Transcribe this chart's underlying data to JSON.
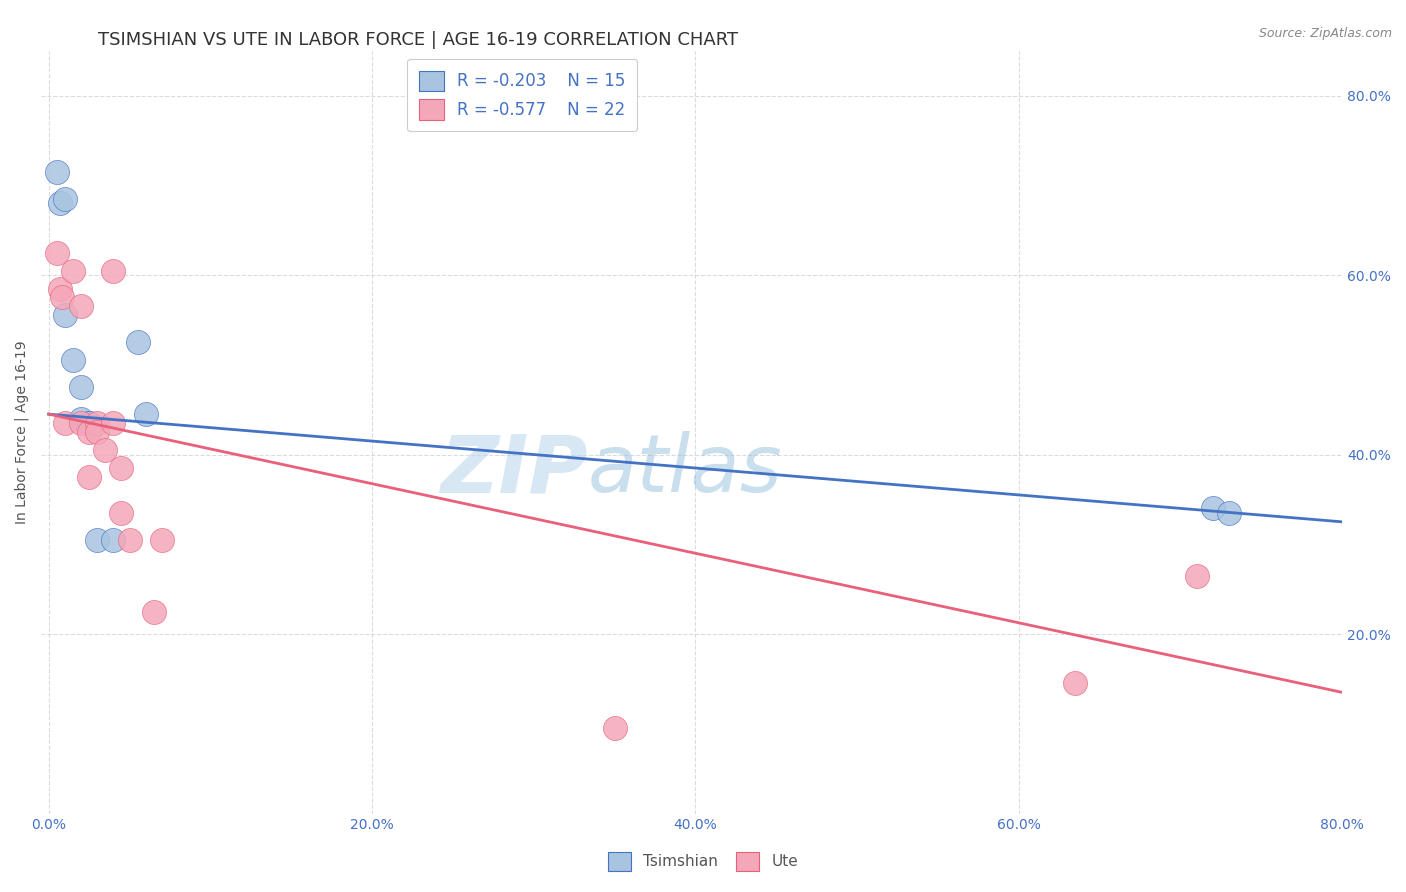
{
  "title": "TSIMSHIAN VS UTE IN LABOR FORCE | AGE 16-19 CORRELATION CHART",
  "source": "Source: ZipAtlas.com",
  "xlabel": "",
  "ylabel": "In Labor Force | Age 16-19",
  "xlim": [
    -0.005,
    0.8
  ],
  "ylim": [
    0.0,
    0.85
  ],
  "xtick_labels": [
    "0.0%",
    "20.0%",
    "40.0%",
    "60.0%",
    "80.0%"
  ],
  "xtick_vals": [
    0.0,
    0.2,
    0.4,
    0.6,
    0.8
  ],
  "ytick_labels": [
    "20.0%",
    "40.0%",
    "60.0%",
    "80.0%"
  ],
  "ytick_vals": [
    0.2,
    0.4,
    0.6,
    0.8
  ],
  "tsimshian_color": "#a8c4e0",
  "ute_color": "#f4a7b9",
  "tsimshian_line_color": "#4472C4",
  "ute_line_color": "#e8607a",
  "watermark_zip": "ZIP",
  "watermark_atlas": "atlas",
  "legend_r_tsimshian": "R = -0.203",
  "legend_n_tsimshian": "N = 15",
  "legend_r_ute": "R = -0.577",
  "legend_n_ute": "N = 22",
  "tsimshian_x": [
    0.005,
    0.007,
    0.01,
    0.01,
    0.015,
    0.02,
    0.02,
    0.025,
    0.025,
    0.03,
    0.04,
    0.055,
    0.06,
    0.72,
    0.73
  ],
  "tsimshian_y": [
    0.715,
    0.68,
    0.685,
    0.555,
    0.505,
    0.475,
    0.44,
    0.435,
    0.435,
    0.305,
    0.305,
    0.525,
    0.445,
    0.34,
    0.335
  ],
  "ute_x": [
    0.005,
    0.007,
    0.008,
    0.01,
    0.015,
    0.02,
    0.02,
    0.025,
    0.025,
    0.03,
    0.03,
    0.035,
    0.04,
    0.04,
    0.045,
    0.045,
    0.05,
    0.065,
    0.07,
    0.35,
    0.635,
    0.71
  ],
  "ute_y": [
    0.625,
    0.585,
    0.575,
    0.435,
    0.605,
    0.565,
    0.435,
    0.425,
    0.375,
    0.435,
    0.425,
    0.405,
    0.605,
    0.435,
    0.385,
    0.335,
    0.305,
    0.225,
    0.305,
    0.095,
    0.145,
    0.265
  ],
  "background_color": "#ffffff",
  "grid_color": "#cccccc",
  "title_fontsize": 13,
  "axis_label_fontsize": 10,
  "tick_fontsize": 10,
  "legend_fontsize": 12
}
